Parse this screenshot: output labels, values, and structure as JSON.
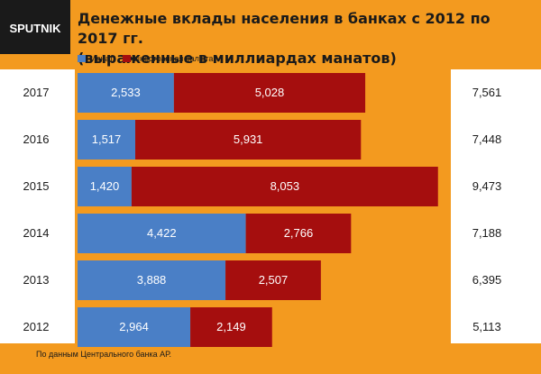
{
  "logo": {
    "text": "SPUTNIK",
    "color": "#1a1a1a",
    "text_color": "#ffffff"
  },
  "title": {
    "line1": "Денежные вклады населения в банках с 2012 по 2017 гг.",
    "line2": "(выраженные в миллиардах манатов)"
  },
  "source": "По данным Центрального банка АР.",
  "chart_data": {
    "type": "bar",
    "orientation": "horizontal",
    "stacked": true,
    "categories": [
      "2017",
      "2016",
      "2015",
      "2014",
      "2013",
      "2012"
    ],
    "series": [
      {
        "name": "Манат",
        "color": "#4a7fc6",
        "values": [
          "2,533",
          "1,517",
          "1,420",
          "4,422",
          "3,888",
          "2,964"
        ]
      },
      {
        "name": "Иностранная валюта",
        "color": "#a50e0e",
        "values": [
          "5,028",
          "5,931",
          "8,053",
          "2,766",
          "2,507",
          "2,149"
        ]
      }
    ],
    "totals": [
      "7,561",
      "7,448",
      "9,473",
      "7,188",
      "6,395",
      "5,113"
    ],
    "xlim": [
      0,
      9.6
    ],
    "legend": "top-left",
    "grid": false
  }
}
